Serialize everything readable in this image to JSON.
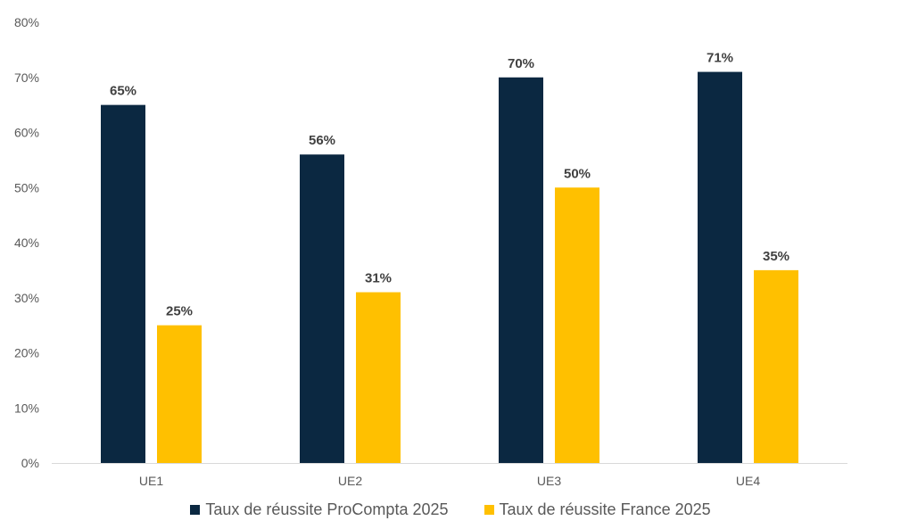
{
  "chart_data": {
    "type": "bar",
    "title": "",
    "xlabel": "",
    "ylabel": "",
    "categories": [
      "UE1",
      "UE2",
      "UE3",
      "UE4"
    ],
    "series": [
      {
        "name": "Taux de réussite ProCompta 2025",
        "color": "#0b2841",
        "values": [
          65,
          56,
          70,
          71
        ]
      },
      {
        "name": "Taux de réussite France 2025",
        "color": "#ffc000",
        "values": [
          25,
          31,
          50,
          35
        ]
      }
    ],
    "ylim": [
      0,
      80
    ],
    "yticks": [
      0,
      10,
      20,
      30,
      40,
      50,
      60,
      70,
      80
    ],
    "ytick_suffix": "%",
    "data_label_suffix": "%",
    "grid": false,
    "legend_position": "bottom"
  }
}
